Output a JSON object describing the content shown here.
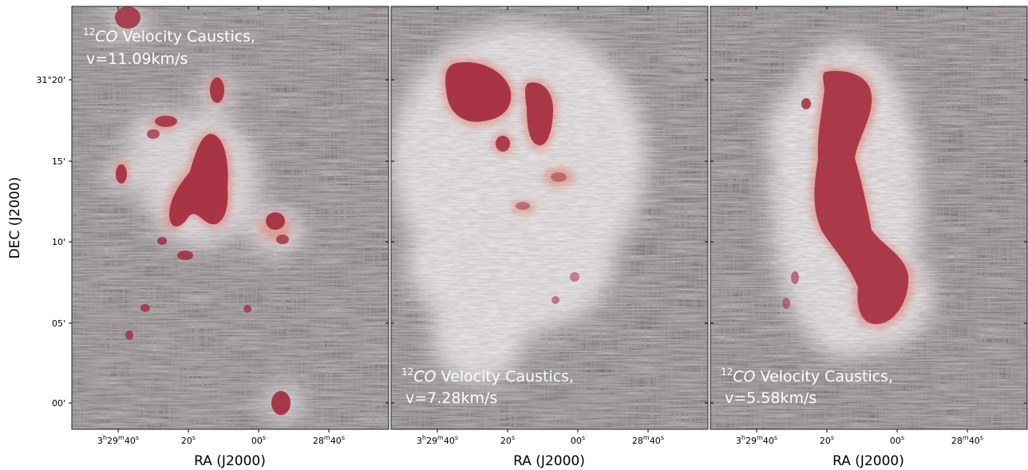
{
  "chart_data": [
    {
      "type": "heatmap",
      "caption_line1_prefix": "12",
      "caption_line1_italic": "CO",
      "caption_line1_rest": " Velocity Caustics,",
      "caption_line2": "v=11.09km/s",
      "velocity_kms": 11.09,
      "xlabel": "RA (J2000)",
      "ylabel": "DEC (J2000)",
      "x_ticks": [
        {
          "h": "3",
          "hs": "h",
          "m": "29",
          "ms": "m",
          "s": "40",
          "ss": "s"
        },
        {
          "s": "20",
          "ss": "s"
        },
        {
          "s": "00",
          "ss": "s"
        },
        {
          "m": "28",
          "ms": "m",
          "s": "40",
          "ss": "s"
        }
      ],
      "y_ticks": [
        "31°20'",
        "15'",
        "10'",
        "05'",
        "00'"
      ],
      "y_ticks_shown": true,
      "emission_colormap": "#b4283c"
    },
    {
      "type": "heatmap",
      "caption_line1_prefix": "12",
      "caption_line1_italic": "CO",
      "caption_line1_rest": " Velocity Caustics,",
      "caption_line2": "v=7.28km/s",
      "velocity_kms": 7.28,
      "xlabel": "RA (J2000)",
      "ylabel": "",
      "x_ticks": [
        {
          "h": "3",
          "hs": "h",
          "m": "29",
          "ms": "m",
          "s": "40",
          "ss": "s"
        },
        {
          "s": "20",
          "ss": "s"
        },
        {
          "s": "00",
          "ss": "s"
        },
        {
          "m": "28",
          "ms": "m",
          "s": "40",
          "ss": "s"
        }
      ],
      "y_ticks_shown": false,
      "emission_colormap": "#b4283c"
    },
    {
      "type": "heatmap",
      "caption_line1_prefix": "12",
      "caption_line1_italic": "CO",
      "caption_line1_rest": " Velocity Caustics,",
      "caption_line2": "v=5.58km/s",
      "velocity_kms": 5.58,
      "xlabel": "RA (J2000)",
      "ylabel": "",
      "x_ticks": [
        {
          "h": "3",
          "hs": "h",
          "m": "29",
          "ms": "m",
          "s": "40",
          "ss": "s"
        },
        {
          "s": "20",
          "ss": "s"
        },
        {
          "s": "00",
          "ss": "s"
        },
        {
          "m": "28",
          "ms": "m",
          "s": "40",
          "ss": "s"
        }
      ],
      "y_ticks_shown": false,
      "emission_colormap": "#b4283c"
    }
  ],
  "colors": {
    "background_texture_dark": "#5a5a5a",
    "background_texture_light": "#cfcfcf",
    "emission": "#a52a3c",
    "emission_halo": "#e08070"
  }
}
